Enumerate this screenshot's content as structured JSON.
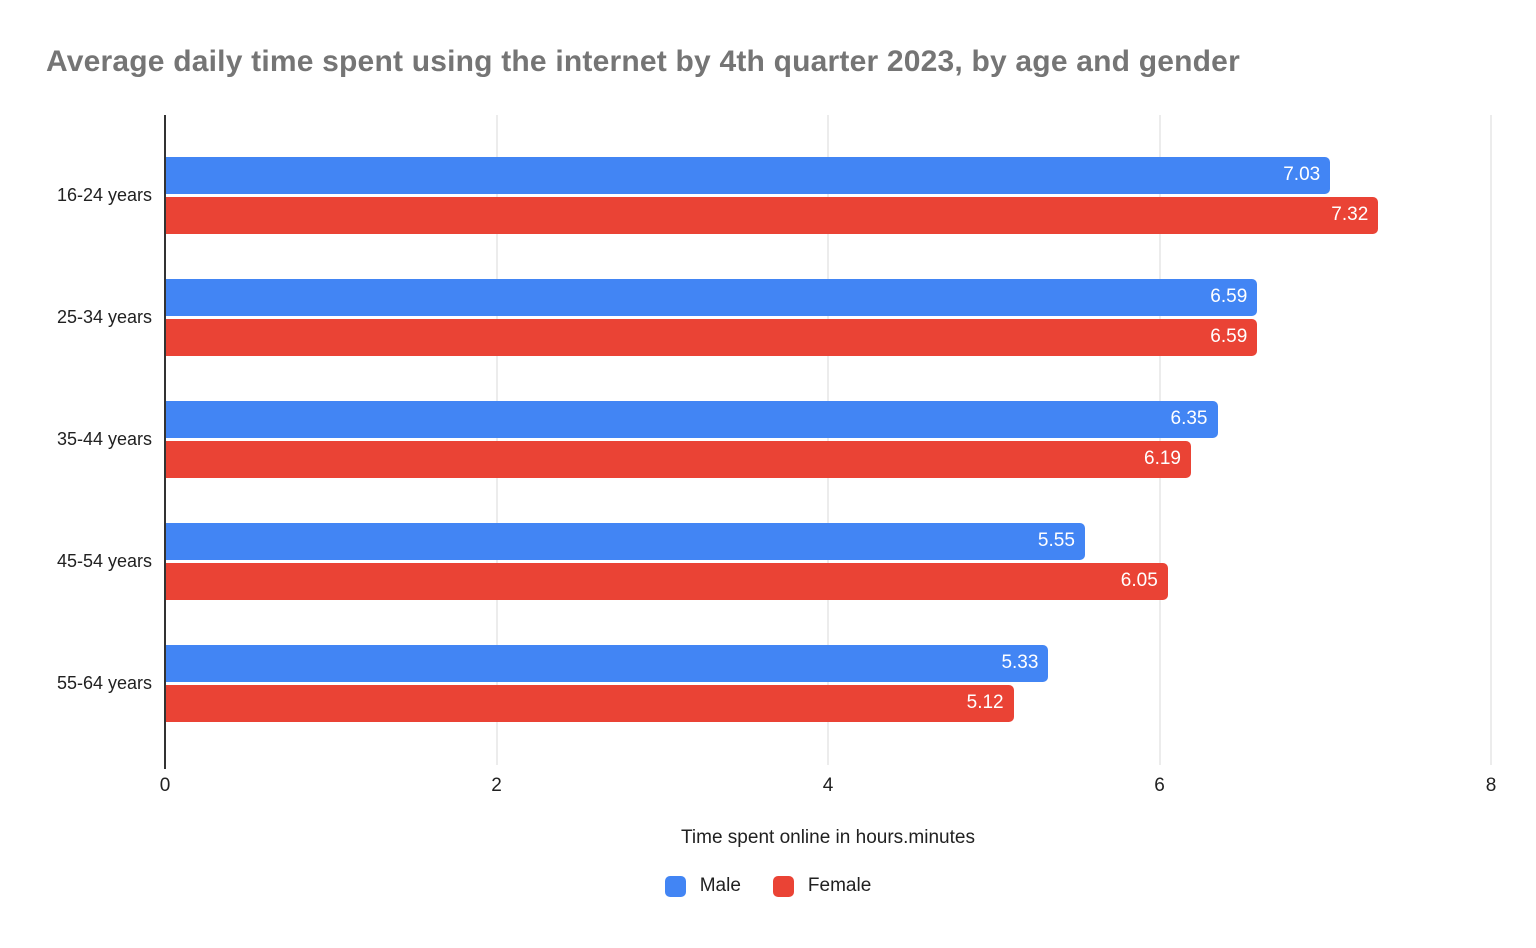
{
  "title": "Average daily time spent using the internet by 4th quarter 2023, by age and gender",
  "chart_data": {
    "type": "bar",
    "orientation": "horizontal",
    "title": "Average daily time spent using the internet by 4th quarter 2023, by age and gender",
    "categories": [
      "16-24 years",
      "25-34 years",
      "35-44 years",
      "45-54 years",
      "55-64 years"
    ],
    "series": [
      {
        "name": "Male",
        "color": "#4285F4",
        "values": [
          7.03,
          6.59,
          6.35,
          5.55,
          5.33
        ]
      },
      {
        "name": "Female",
        "color": "#EA4335",
        "values": [
          7.32,
          6.59,
          6.19,
          6.05,
          5.12
        ]
      }
    ],
    "xlabel": "Time spent online in hours.minutes",
    "ylabel": "",
    "xlim": [
      0,
      8
    ],
    "x_ticks": [
      0,
      2,
      4,
      6,
      8
    ],
    "grid": "vertical-gridlines",
    "legend_position": "bottom",
    "value_labels": "inside-end",
    "colors": {
      "male": "#4285F4",
      "female": "#EA4335",
      "title_text": "#757575",
      "axis_text": "#212121",
      "gridline": "#d9d9d9",
      "axis_line": "#333333"
    }
  }
}
